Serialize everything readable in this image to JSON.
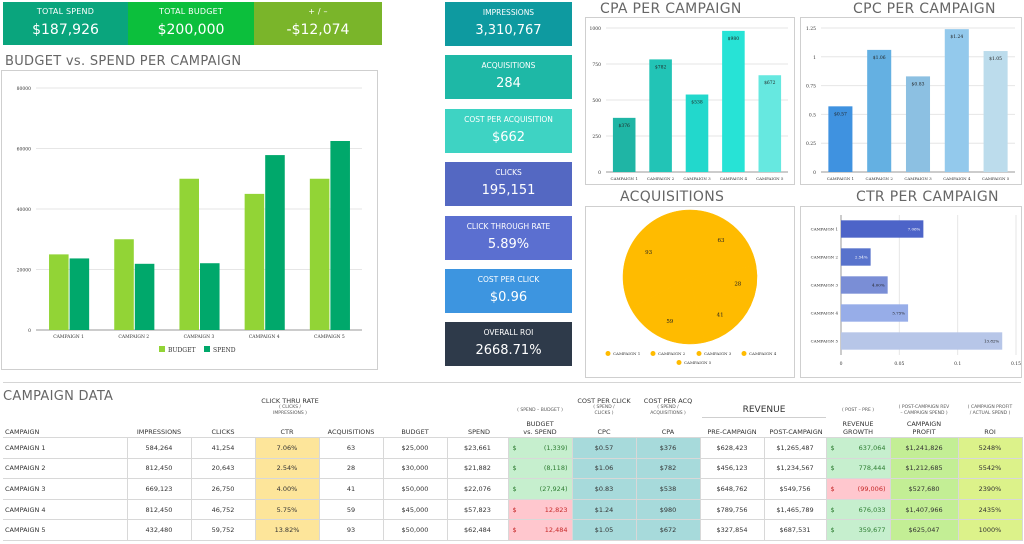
{
  "summary": {
    "total_spend": {
      "label": "TOTAL SPEND",
      "value": "$187,926",
      "color": "#0aa57d"
    },
    "total_budget": {
      "label": "TOTAL BUDGET",
      "value": "$200,000",
      "color": "#0cbf3c"
    },
    "plus_minus": {
      "label": "+ / –",
      "value": "-$12,074",
      "color": "#7ab52a"
    }
  },
  "kpis": [
    {
      "label": "IMPRESSIONS",
      "value": "3,310,767",
      "color": "#0e9aa0"
    },
    {
      "label": "ACQUISITIONS",
      "value": "284",
      "color": "#1eb8a6"
    },
    {
      "label": "COST PER ACQUISITION",
      "value": "$662",
      "color": "#3ed3c3"
    },
    {
      "label": "CLICKS",
      "value": "195,151",
      "color": "#5468c2"
    },
    {
      "label": "CLICK THROUGH RATE",
      "value": "5.89%",
      "color": "#5b6fd0"
    },
    {
      "label": "COST PER CLICK",
      "value": "$0.96",
      "color": "#3d95e0"
    },
    {
      "label": "OVERALL ROI",
      "value": "2668.71%",
      "color": "#2e3a4a"
    }
  ],
  "chart_data": [
    {
      "id": "budget-vs-spend",
      "type": "bar",
      "title": "BUDGET vs. SPEND PER CAMPAIGN",
      "categories": [
        "CAMPAIGN 1",
        "CAMPAIGN 2",
        "CAMPAIGN 3",
        "CAMPAIGN 4",
        "CAMPAIGN 5"
      ],
      "series": [
        {
          "name": "BUDGET",
          "values": [
            25000,
            30000,
            50000,
            45000,
            50000
          ],
          "color": "#92d436"
        },
        {
          "name": "SPEND",
          "values": [
            23661,
            21882,
            22076,
            57823,
            62484
          ],
          "color": "#00a86b"
        }
      ],
      "yticks": [
        "0",
        "20000",
        "40000",
        "60000",
        "80000"
      ],
      "ylim": [
        0,
        80000
      ],
      "grid": true,
      "legend": "bottom"
    },
    {
      "id": "cpa",
      "type": "bar",
      "title": "CPA PER CAMPAIGN",
      "categories": [
        "CAMPAIGN 1",
        "CAMPAIGN 2",
        "CAMPAIGN 3",
        "CAMPAIGN 4",
        "CAMPAIGN 5"
      ],
      "values": [
        376,
        782,
        538,
        980,
        672
      ],
      "labels": [
        "$376",
        "$782",
        "$538",
        "$980",
        "$672"
      ],
      "colors": [
        "#1fb5a5",
        "#22c4b6",
        "#22d8cc",
        "#27e3d6",
        "#66e8e0"
      ],
      "yticks": [
        "0",
        "250",
        "500",
        "750",
        "1000"
      ],
      "ylim": [
        0,
        1000
      ],
      "grid": true
    },
    {
      "id": "cpc",
      "type": "bar",
      "title": "CPC PER CAMPAIGN",
      "categories": [
        "CAMPAIGN 1",
        "CAMPAIGN 2",
        "CAMPAIGN 3",
        "CAMPAIGN 4",
        "CAMPAIGN 5"
      ],
      "values": [
        0.57,
        1.06,
        0.83,
        1.24,
        1.05
      ],
      "labels": [
        "$0.57",
        "$1.06",
        "$0.83",
        "$1.24",
        "$1.05"
      ],
      "colors": [
        "#3f92e0",
        "#64b0e2",
        "#8cc0e2",
        "#93c9ec",
        "#bcdcec"
      ],
      "yticks": [
        "0",
        "0.25",
        "0.5",
        "0.75",
        "1",
        "1.25"
      ],
      "ylim": [
        0,
        1.25
      ],
      "grid": true
    },
    {
      "id": "acquisitions",
      "type": "pie",
      "title": "ACQUISITIONS",
      "categories": [
        "CAMPAIGN 1",
        "CAMPAIGN 2",
        "CAMPAIGN 3",
        "CAMPAIGN 4",
        "CAMPAIGN 5"
      ],
      "values": [
        63,
        28,
        41,
        59,
        93
      ],
      "color": "#ffbb00",
      "legend": "bottom"
    },
    {
      "id": "ctr",
      "type": "bar",
      "orientation": "horizontal",
      "title": "CTR PER CAMPAIGN",
      "categories": [
        "CAMPAIGN 1",
        "CAMPAIGN 2",
        "CAMPAIGN 3",
        "CAMPAIGN 4",
        "CAMPAIGN 5"
      ],
      "values": [
        0.0706,
        0.0254,
        0.04,
        0.0575,
        0.1382
      ],
      "labels": [
        "7.06%",
        "2.54%",
        "4.00%",
        "5.75%",
        "13.82%"
      ],
      "colors": [
        "#4d64c8",
        "#5873cc",
        "#7a8ed6",
        "#97ade8",
        "#b7c6e8"
      ],
      "xticks": [
        "0",
        "0.05",
        "0.1",
        "0.15"
      ],
      "xlim": [
        0,
        0.15
      ],
      "grid": true
    }
  ],
  "table": {
    "title": "CAMPAIGN DATA",
    "group_headers": {
      "ctr": {
        "title": "CLICK THRU RATE",
        "sub1": "( CLICKS /",
        "sub2": "IMPRESSIONS )"
      },
      "bvs": {
        "sub1": "( SPEND – BUDGET )"
      },
      "cpc": {
        "title": "COST PER CLICK",
        "sub1": "( SPEND /",
        "sub2": "CLICKS )"
      },
      "cpa": {
        "title": "COST PER ACQ",
        "sub1": "( SPEND /",
        "sub2": "ACQUISITIONS )"
      },
      "revenue": {
        "title": "REVENUE"
      },
      "growth": {
        "sub1": "( POST – PRE )"
      },
      "profit": {
        "sub1": "( POST-CAMPAIGN REV",
        "sub2": "– CAMPAIGN SPEND )"
      },
      "roi": {
        "sub1": "( CAMPAIGN PROFIT",
        "sub2": "/ ACTUAL SPEND )"
      }
    },
    "columns": [
      "CAMPAIGN",
      "IMPRESSIONS",
      "CLICKS",
      "CTR",
      "ACQUISITIONS",
      "BUDGET",
      "SPEND",
      "BUDGET",
      "vs. SPEND",
      "CPC",
      "CPA",
      "PRE-CAMPAIGN",
      "POST-CAMPAIGN",
      "REVENUE",
      "GROWTH",
      "CAMPAIGN",
      "PROFIT",
      "ROI"
    ],
    "rows": [
      {
        "campaign": "CAMPAIGN 1",
        "impressions": "584,264",
        "clicks": "41,254",
        "ctr": "7.06%",
        "acquisitions": "63",
        "budget": "$25,000",
        "spend": "$23,661",
        "bvs_sign": "$",
        "bvs": "(1,339)",
        "bvs_status": "under",
        "cpc": "$0.57",
        "cpa": "$376",
        "pre": "$628,423",
        "post": "$1,265,487",
        "growth_sign": "$",
        "growth": "637,064",
        "growth_status": "positive",
        "profit": "$1,241,826",
        "roi": "5248%"
      },
      {
        "campaign": "CAMPAIGN 2",
        "impressions": "812,450",
        "clicks": "20,643",
        "ctr": "2.54%",
        "acquisitions": "28",
        "budget": "$30,000",
        "spend": "$21,882",
        "bvs_sign": "$",
        "bvs": "(8,118)",
        "bvs_status": "under",
        "cpc": "$1.06",
        "cpa": "$782",
        "pre": "$456,123",
        "post": "$1,234,567",
        "growth_sign": "$",
        "growth": "778,444",
        "growth_status": "positive",
        "profit": "$1,212,685",
        "roi": "5542%"
      },
      {
        "campaign": "CAMPAIGN 3",
        "impressions": "669,123",
        "clicks": "26,750",
        "ctr": "4.00%",
        "acquisitions": "41",
        "budget": "$50,000",
        "spend": "$22,076",
        "bvs_sign": "$",
        "bvs": "(27,924)",
        "bvs_status": "under",
        "cpc": "$0.83",
        "cpa": "$538",
        "pre": "$648,762",
        "post": "$549,756",
        "growth_sign": "$",
        "growth": "(99,006)",
        "growth_status": "negative",
        "profit": "$527,680",
        "roi": "2390%"
      },
      {
        "campaign": "CAMPAIGN 4",
        "impressions": "812,450",
        "clicks": "46,752",
        "ctr": "5.75%",
        "acquisitions": "59",
        "budget": "$45,000",
        "spend": "$57,823",
        "bvs_sign": "$",
        "bvs": "12,823",
        "bvs_status": "over",
        "cpc": "$1.24",
        "cpa": "$980",
        "pre": "$789,756",
        "post": "$1,465,789",
        "growth_sign": "$",
        "growth": "676,033",
        "growth_status": "positive",
        "profit": "$1,407,966",
        "roi": "2435%"
      },
      {
        "campaign": "CAMPAIGN 5",
        "impressions": "432,480",
        "clicks": "59,752",
        "ctr": "13.82%",
        "acquisitions": "93",
        "budget": "$50,000",
        "spend": "$62,484",
        "bvs_sign": "$",
        "bvs": "12,484",
        "bvs_status": "over",
        "cpc": "$1.05",
        "cpa": "$672",
        "pre": "$327,854",
        "post": "$687,531",
        "growth_sign": "$",
        "growth": "359,677",
        "growth_status": "positive",
        "profit": "$625,047",
        "roi": "1000%"
      }
    ]
  }
}
